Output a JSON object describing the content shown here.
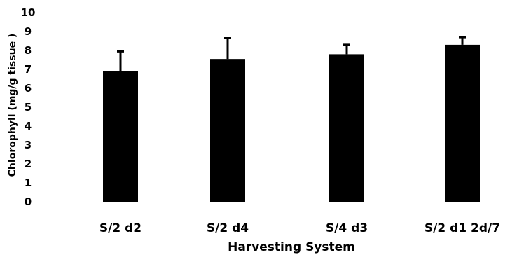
{
  "chart_data": {
    "type": "bar",
    "title": "",
    "xlabel": "Harvesting System",
    "ylabel": "Chlorophyll (mg/g tissue )",
    "categories": [
      "S/2 d2",
      "S/2 d4",
      "S/4 d3",
      "S/2 d1 2d/7"
    ],
    "values": [
      6.9,
      7.55,
      7.8,
      8.3
    ],
    "error_upper": [
      1.05,
      1.1,
      0.5,
      0.4
    ],
    "ylim": [
      0,
      10
    ],
    "yticks": [
      "0",
      "1",
      "2",
      "3",
      "4",
      "5",
      "6",
      "7",
      "8",
      "9",
      "10"
    ],
    "grid": false,
    "legend": "none",
    "bar_color": "#000000"
  }
}
